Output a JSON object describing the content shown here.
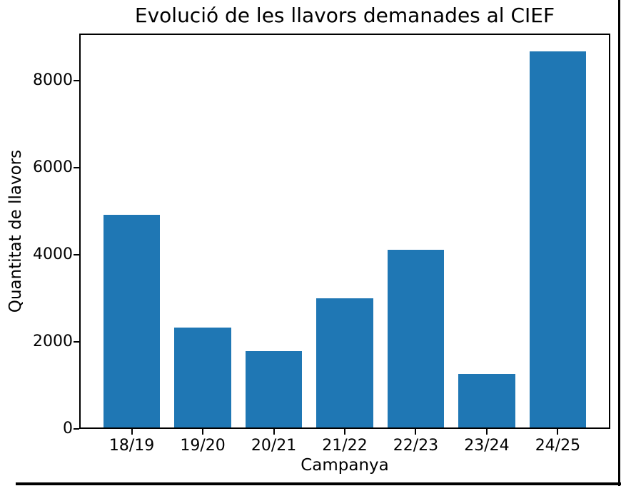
{
  "chart_data": {
    "type": "bar",
    "title": "Evolució de les llavors demanades al CIEF",
    "xlabel": "Campanya",
    "ylabel": "Quantitat de llavors",
    "categories": [
      "18/19",
      "19/20",
      "20/21",
      "21/22",
      "22/23",
      "23/24",
      "24/25"
    ],
    "values": [
      4890,
      2300,
      1760,
      2970,
      4080,
      1230,
      8640
    ],
    "yticks": [
      0,
      2000,
      4000,
      6000,
      8000
    ],
    "ylim": [
      0,
      9080
    ],
    "bar_color": "#1f77b4",
    "axis_color": "#000000",
    "text_color": "#000000",
    "background_color": "#ffffff",
    "grid": false,
    "legend": null,
    "bar_width_fraction": 0.8
  },
  "page": {
    "border_color": "#000000"
  }
}
